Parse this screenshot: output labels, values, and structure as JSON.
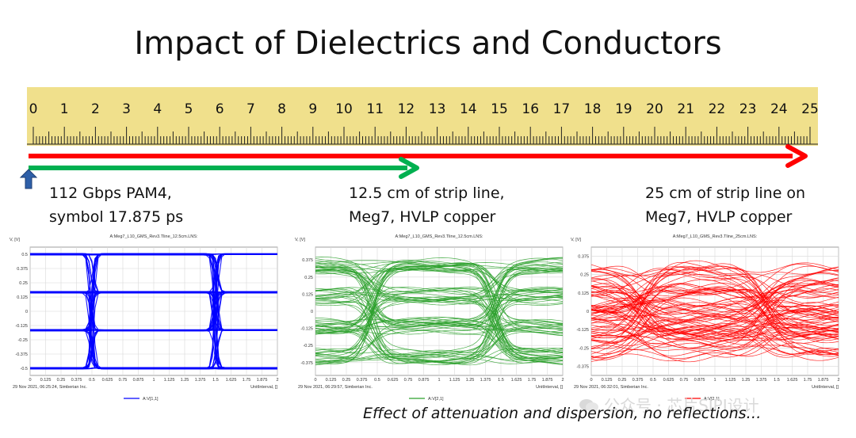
{
  "slide": {
    "title": "Impact of Dielectrics and Conductors",
    "footnote": "Effect of attenuation and dispersion, no reflections…",
    "watermark": "公众号 · 芯片SIPI设计"
  },
  "ruler": {
    "labels": [
      "0",
      "1",
      "2",
      "3",
      "4",
      "5",
      "6",
      "7",
      "8",
      "9",
      "10",
      "11",
      "12",
      "13",
      "14",
      "15",
      "16",
      "17",
      "18",
      "19",
      "20",
      "21",
      "22",
      "23",
      "24",
      "25"
    ],
    "color": "#f0e08c"
  },
  "arrows": {
    "red": {
      "color": "#ff0000",
      "from_cm": 0,
      "to_cm": 25
    },
    "green": {
      "color": "#00b050",
      "from_cm": 0,
      "to_cm": 12.5
    }
  },
  "captions": {
    "left": [
      "112 Gbps PAM4,",
      "symbol 17.875 ps"
    ],
    "middle": [
      "12.5 cm of strip line,",
      "Meg7, HVLP copper"
    ],
    "right": [
      "25 cm of strip line on",
      "Meg7, HVLP copper"
    ]
  },
  "chart_data": [
    {
      "type": "line",
      "subtype": "eye-diagram",
      "title": "A:Meg7_L10_GMS_Rev3.Tline_12.5cm.LNS:",
      "ylabel": "V, [V]",
      "xlabel": "UnitInterval, []",
      "timestamp": "29 Nov 2021, 06:25:24, Simberian Inc.",
      "legend": "A:V[1,1]",
      "color": "#0000ff",
      "xlim": [
        0,
        2
      ],
      "ylim": [
        -0.5625,
        0.5625
      ],
      "xticks": [
        "0",
        "0.125",
        "0.25",
        "0.375",
        "0.5",
        "0.625",
        "0.75",
        "0.875",
        "1",
        "1.125",
        "1.25",
        "1.375",
        "1.5",
        "1.625",
        "1.75",
        "1.875",
        "2"
      ],
      "yticks": [
        "0.5",
        "0.375",
        "0.25",
        "0.125",
        "0",
        "-0.125",
        "-0.25",
        "-0.375",
        "-0.5"
      ],
      "levels": [
        -0.5,
        -0.1667,
        0.1667,
        0.5
      ],
      "transitions_ui": [
        0.5,
        1.5
      ]
    },
    {
      "type": "line",
      "subtype": "eye-diagram",
      "title": "A:Meg7_L10_GMS_Rev3.Tline_12.5cm.LNS:",
      "ylabel": "V, [V]",
      "xlabel": "UnitInterval, []",
      "timestamp": "29 Nov 2021, 06:29:57, Simberian Inc.",
      "legend": "A:V[2,1]",
      "color": "#2ca02c",
      "xlim": [
        0,
        2
      ],
      "ylim": [
        -0.4688,
        0.4688
      ],
      "xticks": [
        "0",
        "0.125",
        "0.25",
        "0.375",
        "0.5",
        "0.625",
        "0.75",
        "0.875",
        "1",
        "1.125",
        "1.25",
        "1.375",
        "1.5",
        "1.625",
        "1.75",
        "1.875",
        "2"
      ],
      "yticks": [
        "0.375",
        "0.25",
        "0.125",
        "0",
        "-0.125",
        "-0.25",
        "-0.375"
      ],
      "levels": [
        -0.33,
        -0.11,
        0.11,
        0.33
      ],
      "transitions_ui": [
        0.45,
        1.45
      ]
    },
    {
      "type": "line",
      "subtype": "eye-diagram",
      "title": "A:Meg7_L10_GMS_Rev3.Tline_25cm.LNS:",
      "ylabel": "V, [V]",
      "xlabel": "UnitInterval, []",
      "timestamp": "29 Nov 2021, 06:32:01, Simberian Inc.",
      "legend": "A:V[2,1]",
      "color": "#ff0000",
      "xlim": [
        0,
        2
      ],
      "ylim": [
        -0.4375,
        0.4375
      ],
      "xticks": [
        "0",
        "0.125",
        "0.25",
        "0.375",
        "0.5",
        "0.625",
        "0.75",
        "0.875",
        "1",
        "1.125",
        "1.25",
        "1.375",
        "1.5",
        "1.625",
        "1.75",
        "1.875",
        "2"
      ],
      "yticks": [
        "0.375",
        "0.25",
        "0.125",
        "0",
        "-0.125",
        "-0.25",
        "-0.375"
      ],
      "levels": [
        -0.22,
        -0.07,
        0.07,
        0.22
      ],
      "transitions_ui": [
        0.4,
        1.4
      ]
    }
  ]
}
